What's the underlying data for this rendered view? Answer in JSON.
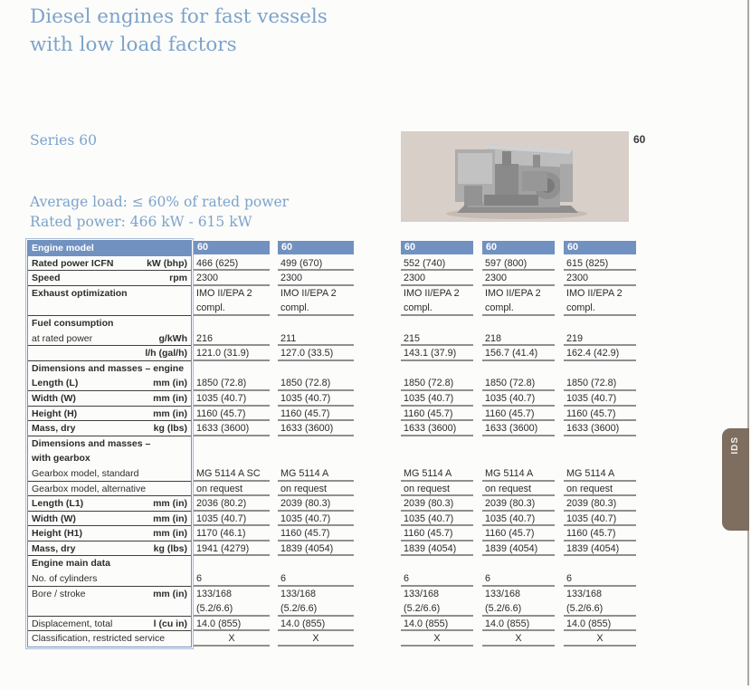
{
  "header": {
    "title_line1": "Diesel engines for fast vessels",
    "title_line2": "with low load factors"
  },
  "intro": {
    "series": "Series 60",
    "average_load": "Average load: ≤ 60% of rated power",
    "rated_power": "Rated power:  466 kW - 615 kW"
  },
  "figure": {
    "description": "engine-photo",
    "corner_label": "60"
  },
  "side_tab": {
    "label": "IDS"
  },
  "colors": {
    "accent_blue": "#7191c0",
    "title_blue": "#7ca3cb",
    "tab_brown": "#7d6e60",
    "figure_background": "#d8cfc8",
    "data_rule_gray": "#8f8f8f",
    "label_rule_dark": "#3f3f3f"
  },
  "table": {
    "column_headers": [
      "60",
      "60",
      "60",
      "60",
      "60"
    ],
    "rows": [
      {
        "type": "header",
        "label": "Engine model"
      },
      {
        "type": "data",
        "label": "Rated power ICFN",
        "unit": "kW (bhp)",
        "bold": true,
        "lline": true,
        "vline": true,
        "values": [
          "466 (625)",
          "499 (670)",
          "552 (740)",
          "597 (800)",
          "615 (825)"
        ]
      },
      {
        "type": "data",
        "label": "Speed",
        "unit": "rpm",
        "bold": true,
        "lline": true,
        "vline": true,
        "values": [
          "2300",
          "2300",
          "2300",
          "2300",
          "2300"
        ]
      },
      {
        "type": "data",
        "label": "Exhaust optimization",
        "bold": true,
        "values": [
          "IMO II/EPA 2",
          "IMO II/EPA 2",
          "IMO II/EPA 2",
          "IMO II/EPA 2",
          "IMO II/EPA 2"
        ]
      },
      {
        "type": "data",
        "label": "",
        "lline": true,
        "vline": true,
        "values": [
          "compl.",
          "compl.",
          "compl.",
          "compl.",
          "compl."
        ]
      },
      {
        "type": "section",
        "label": "Fuel consumption"
      },
      {
        "type": "data",
        "label": "at rated power",
        "unit": "g/kWh",
        "lline": true,
        "vline": true,
        "values": [
          "216",
          "211",
          "215",
          "218",
          "219"
        ]
      },
      {
        "type": "data",
        "label": "",
        "unit": "l/h (gal/h)",
        "lline": true,
        "vline": true,
        "values": [
          "121.0 (31.9)",
          "127.0 (33.5)",
          "143.1 (37.9)",
          "156.7 (41.4)",
          "162.4 (42.9)"
        ]
      },
      {
        "type": "section",
        "label": "Dimensions and masses – engine"
      },
      {
        "type": "data",
        "label": "Length (L)",
        "unit": "mm (in)",
        "bold": true,
        "lline": true,
        "vline": true,
        "values": [
          "1850 (72.8)",
          "1850 (72.8)",
          "1850 (72.8)",
          "1850 (72.8)",
          "1850 (72.8)"
        ]
      },
      {
        "type": "data",
        "label": "Width (W)",
        "unit": "mm (in)",
        "bold": true,
        "lline": true,
        "vline": true,
        "values": [
          "1035 (40.7)",
          "1035 (40.7)",
          "1035 (40.7)",
          "1035 (40.7)",
          "1035 (40.7)"
        ]
      },
      {
        "type": "data",
        "label": "Height (H)",
        "unit": "mm (in)",
        "bold": true,
        "lline": true,
        "vline": true,
        "values": [
          "1160 (45.7)",
          "1160 (45.7)",
          "1160 (45.7)",
          "1160 (45.7)",
          "1160 (45.7)"
        ]
      },
      {
        "type": "data",
        "label": "Mass, dry",
        "unit": "kg (lbs)",
        "bold": true,
        "lline": true,
        "vline": true,
        "values": [
          "1633 (3600)",
          "1633 (3600)",
          "1633 (3600)",
          "1633 (3600)",
          "1633 (3600)"
        ]
      },
      {
        "type": "section",
        "label": "Dimensions and masses –"
      },
      {
        "type": "section",
        "label": "with gearbox"
      },
      {
        "type": "data",
        "label": "Gearbox model, standard",
        "lline": true,
        "vline": true,
        "values": [
          "MG 5114 A SC",
          "MG 5114 A",
          "MG 5114 A",
          "MG 5114 A",
          "MG 5114 A"
        ]
      },
      {
        "type": "data",
        "label": "Gearbox model, alternative",
        "lline": true,
        "vline": true,
        "values": [
          "on request",
          "on request",
          "on request",
          "on request",
          "on request"
        ]
      },
      {
        "type": "data",
        "label": "Length (L1)",
        "unit": "mm (in)",
        "bold": true,
        "lline": true,
        "vline": true,
        "values": [
          "2036 (80.2)",
          "2039 (80.3)",
          "2039 (80.3)",
          "2039 (80.3)",
          "2039 (80.3)"
        ]
      },
      {
        "type": "data",
        "label": "Width (W)",
        "unit": "mm (in)",
        "bold": true,
        "lline": true,
        "vline": true,
        "values": [
          "1035 (40.7)",
          "1035 (40.7)",
          "1035 (40.7)",
          "1035 (40.7)",
          "1035 (40.7)"
        ]
      },
      {
        "type": "data",
        "label": "Height (H1)",
        "unit": "mm (in)",
        "bold": true,
        "lline": true,
        "vline": true,
        "values": [
          "1170 (46.1)",
          "1160 (45.7)",
          "1160 (45.7)",
          "1160 (45.7)",
          "1160 (45.7)"
        ]
      },
      {
        "type": "data",
        "label": "Mass, dry",
        "unit": "kg (lbs)",
        "bold": true,
        "lline": true,
        "vline": true,
        "values": [
          "1941 (4279)",
          "1839 (4054)",
          "1839 (4054)",
          "1839 (4054)",
          "1839 (4054)"
        ]
      },
      {
        "type": "section",
        "label": "Engine main data"
      },
      {
        "type": "data",
        "label": "No. of cylinders",
        "lline": true,
        "vline": true,
        "values": [
          "6",
          "6",
          "6",
          "6",
          "6"
        ]
      },
      {
        "type": "data",
        "label": "Bore / stroke",
        "unit": "mm (in)",
        "values": [
          "133/168",
          "133/168",
          "133/168",
          "133/168",
          "133/168"
        ]
      },
      {
        "type": "data",
        "label": "",
        "lline": true,
        "vline": true,
        "values": [
          "(5.2/6.6)",
          "(5.2/6.6)",
          "(5.2/6.6)",
          "(5.2/6.6)",
          "(5.2/6.6)"
        ]
      },
      {
        "type": "data",
        "label": "Displacement, total",
        "unit": "l (cu in)",
        "lline": true,
        "vline": true,
        "values": [
          "14.0 (855)",
          "14.0 (855)",
          "14.0 (855)",
          "14.0 (855)",
          "14.0 (855)"
        ]
      },
      {
        "type": "data",
        "label": "Classification, restricted service",
        "vline": true,
        "center": true,
        "values": [
          "X",
          "X",
          "X",
          "X",
          "X"
        ]
      }
    ]
  }
}
